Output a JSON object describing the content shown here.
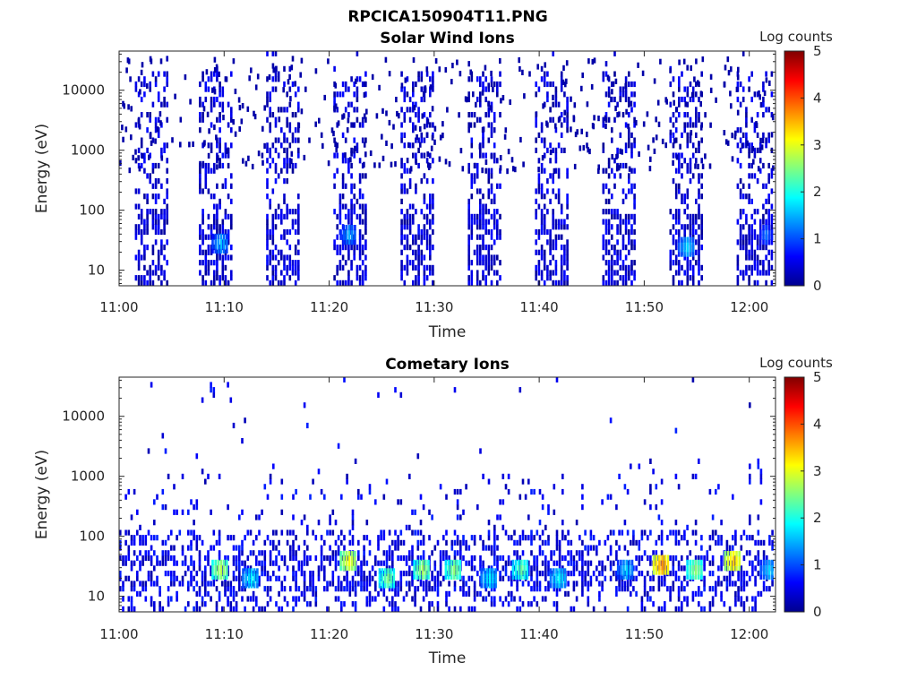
{
  "figure": {
    "title": "RPCICA150904T11.PNG"
  },
  "chart_data": [
    {
      "type": "heatmap",
      "title": "Solar Wind Ions",
      "xlabel": "Time",
      "ylabel": "Energy (eV)",
      "x_ticks": [
        "11:00",
        "11:10",
        "11:20",
        "11:30",
        "11:40",
        "11:50",
        "12:00"
      ],
      "x_range_minutes": [
        0,
        62.5
      ],
      "y_scale": "log",
      "y_ticks": [
        "10",
        "100",
        "1000",
        "10000"
      ],
      "y_range": [
        5.5,
        45000
      ],
      "colorbar": {
        "label": "Log counts",
        "ticks": [
          "0",
          "1",
          "2",
          "3",
          "4",
          "5"
        ],
        "range": [
          0,
          5
        ],
        "colormap": "jet"
      },
      "scan_bursts_minutes": [
        [
          1.5,
          4.5
        ],
        [
          7.6,
          10.8
        ],
        [
          14.0,
          17.2
        ],
        [
          20.4,
          23.5
        ],
        [
          26.8,
          30.0
        ],
        [
          33.2,
          36.4
        ],
        [
          39.6,
          42.8
        ],
        [
          46.0,
          49.2
        ],
        [
          52.4,
          55.6
        ],
        [
          58.8,
          62.2
        ]
      ],
      "hotspots": [
        {
          "time_min": 9.6,
          "energy_ev": 25,
          "log_counts": 1.7
        },
        {
          "time_min": 21.8,
          "energy_ev": 35,
          "log_counts": 1.6
        },
        {
          "time_min": 54.0,
          "energy_ev": 22,
          "log_counts": 1.8
        },
        {
          "time_min": 61.5,
          "energy_ev": 35,
          "log_counts": 1.3
        }
      ]
    },
    {
      "type": "heatmap",
      "title": "Cometary Ions",
      "xlabel": "Time",
      "ylabel": "Energy (eV)",
      "x_ticks": [
        "11:00",
        "11:10",
        "11:20",
        "11:30",
        "11:40",
        "11:50",
        "12:00"
      ],
      "x_range_minutes": [
        0,
        62.5
      ],
      "y_scale": "log",
      "y_ticks": [
        "10",
        "100",
        "1000",
        "10000"
      ],
      "y_range": [
        5.5,
        45000
      ],
      "colorbar": {
        "label": "Log counts",
        "ticks": [
          "0",
          "1",
          "2",
          "3",
          "4",
          "5"
        ],
        "range": [
          0,
          5
        ],
        "colormap": "jet"
      },
      "hotspots": [
        {
          "time_min": 9.6,
          "energy_ev": 25,
          "log_counts": 2.9
        },
        {
          "time_min": 12.5,
          "energy_ev": 18,
          "log_counts": 2.0
        },
        {
          "time_min": 21.8,
          "energy_ev": 35,
          "log_counts": 3.2
        },
        {
          "time_min": 25.5,
          "energy_ev": 18,
          "log_counts": 2.6
        },
        {
          "time_min": 28.8,
          "energy_ev": 25,
          "log_counts": 2.8
        },
        {
          "time_min": 31.8,
          "energy_ev": 25,
          "log_counts": 2.7
        },
        {
          "time_min": 35.2,
          "energy_ev": 18,
          "log_counts": 2.0
        },
        {
          "time_min": 38.2,
          "energy_ev": 25,
          "log_counts": 2.5
        },
        {
          "time_min": 41.8,
          "energy_ev": 18,
          "log_counts": 2.0
        },
        {
          "time_min": 48.2,
          "energy_ev": 25,
          "log_counts": 1.8
        },
        {
          "time_min": 51.6,
          "energy_ev": 30,
          "log_counts": 3.8
        },
        {
          "time_min": 54.8,
          "energy_ev": 25,
          "log_counts": 2.7
        },
        {
          "time_min": 58.4,
          "energy_ev": 35,
          "log_counts": 3.5
        },
        {
          "time_min": 61.8,
          "energy_ev": 25,
          "log_counts": 1.8
        }
      ]
    }
  ]
}
